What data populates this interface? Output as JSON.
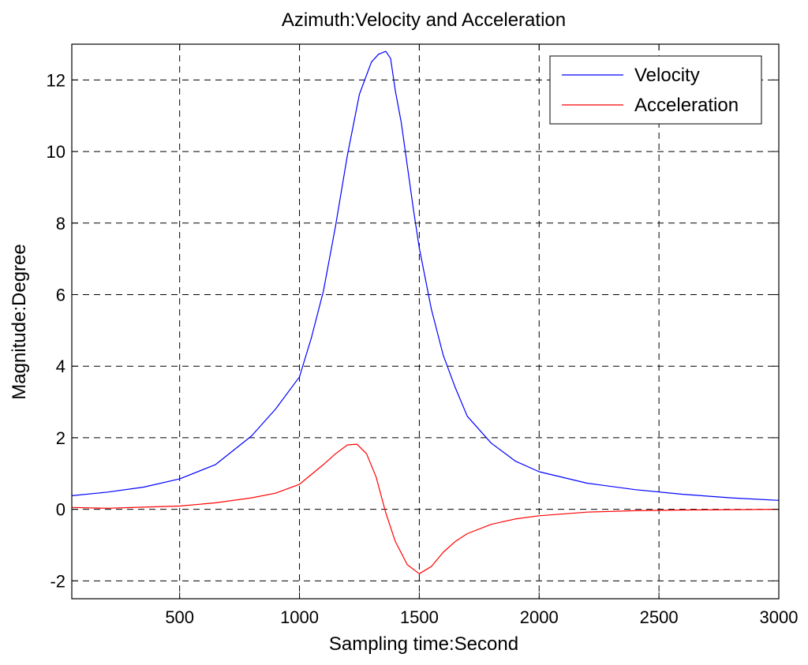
{
  "chart_data": {
    "type": "line",
    "title": "Azimuth:Velocity and Acceleration",
    "xlabel": "Sampling time:Second",
    "ylabel": "Magnitude:Degree",
    "xlim": [
      50,
      3000
    ],
    "ylim": [
      -2.5,
      13
    ],
    "x_ticks": [
      500,
      1000,
      1500,
      2000,
      2500,
      3000
    ],
    "y_ticks": [
      -2,
      0,
      2,
      4,
      6,
      8,
      10,
      12
    ],
    "grid": true,
    "legend_position": "top-right",
    "series": [
      {
        "name": "Velocity",
        "color": "#0000ff",
        "x": [
          50,
          200,
          350,
          500,
          650,
          800,
          900,
          1000,
          1050,
          1100,
          1150,
          1200,
          1250,
          1300,
          1330,
          1360,
          1380,
          1400,
          1425,
          1450,
          1475,
          1500,
          1550,
          1600,
          1650,
          1700,
          1800,
          1900,
          2000,
          2200,
          2400,
          2600,
          2800,
          3000
        ],
        "y": [
          0.38,
          0.48,
          0.62,
          0.85,
          1.25,
          2.05,
          2.8,
          3.7,
          4.8,
          6.1,
          7.9,
          9.9,
          11.6,
          12.5,
          12.72,
          12.8,
          12.6,
          11.7,
          10.8,
          9.6,
          8.4,
          7.3,
          5.6,
          4.3,
          3.4,
          2.6,
          1.85,
          1.35,
          1.05,
          0.73,
          0.55,
          0.42,
          0.32,
          0.25
        ]
      },
      {
        "name": "Acceleration",
        "color": "#ff0000",
        "x": [
          50,
          200,
          350,
          500,
          650,
          800,
          900,
          1000,
          1100,
          1150,
          1200,
          1240,
          1280,
          1320,
          1360,
          1400,
          1450,
          1500,
          1550,
          1600,
          1650,
          1700,
          1800,
          1900,
          2000,
          2200,
          2400,
          2600,
          2800,
          3000
        ],
        "y": [
          0.05,
          0.03,
          0.06,
          0.09,
          0.18,
          0.32,
          0.45,
          0.7,
          1.25,
          1.55,
          1.8,
          1.82,
          1.55,
          0.9,
          -0.1,
          -0.9,
          -1.55,
          -1.8,
          -1.6,
          -1.2,
          -0.9,
          -0.68,
          -0.42,
          -0.27,
          -0.18,
          -0.08,
          -0.04,
          -0.02,
          -0.01,
          0.0
        ]
      }
    ]
  }
}
